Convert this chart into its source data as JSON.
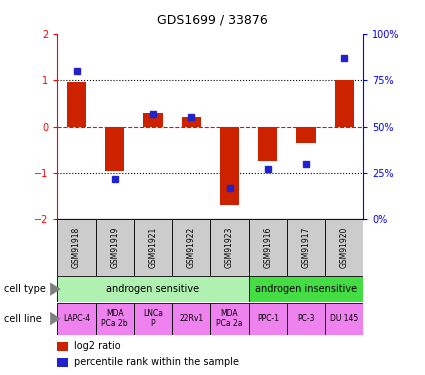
{
  "title": "GDS1699 / 33876",
  "samples": [
    "GSM91918",
    "GSM91919",
    "GSM91921",
    "GSM91922",
    "GSM91923",
    "GSM91916",
    "GSM91917",
    "GSM91920"
  ],
  "log2_ratios": [
    0.95,
    -0.95,
    0.3,
    0.2,
    -1.7,
    -0.75,
    -0.35,
    1.0
  ],
  "percentile_ranks": [
    80,
    22,
    57,
    55,
    17,
    27,
    30,
    87
  ],
  "cell_type_groups": [
    {
      "label": "androgen sensitive",
      "start": 0,
      "end": 5,
      "color": "#b0f0b0"
    },
    {
      "label": "androgen insensitive",
      "start": 5,
      "end": 8,
      "color": "#44dd44"
    }
  ],
  "cell_lines": [
    {
      "label": "LAPC-4",
      "start": 0,
      "end": 1
    },
    {
      "label": "MDA\nPCa 2b",
      "start": 1,
      "end": 2
    },
    {
      "label": "LNCa\nP",
      "start": 2,
      "end": 3
    },
    {
      "label": "22Rv1",
      "start": 3,
      "end": 4
    },
    {
      "label": "MDA\nPCa 2a",
      "start": 4,
      "end": 5
    },
    {
      "label": "PPC-1",
      "start": 5,
      "end": 6
    },
    {
      "label": "PC-3",
      "start": 6,
      "end": 7
    },
    {
      "label": "DU 145",
      "start": 7,
      "end": 8
    }
  ],
  "cell_line_color": "#ee82ee",
  "bar_color": "#cc2200",
  "dot_color": "#2222cc",
  "ylim_left": [
    -2,
    2
  ],
  "ylim_right": [
    0,
    100
  ],
  "yticks_left": [
    -2,
    -1,
    0,
    1,
    2
  ],
  "yticks_right": [
    0,
    25,
    50,
    75,
    100
  ],
  "ytick_labels_right": [
    "0%",
    "25%",
    "50%",
    "75%",
    "100%"
  ],
  "hline_positions": [
    -1,
    0,
    1
  ],
  "hline_styles": [
    "dotted",
    "dashed",
    "dotted"
  ],
  "hline_colors": [
    "black",
    "red",
    "black"
  ],
  "gsm_box_color": "#cccccc"
}
